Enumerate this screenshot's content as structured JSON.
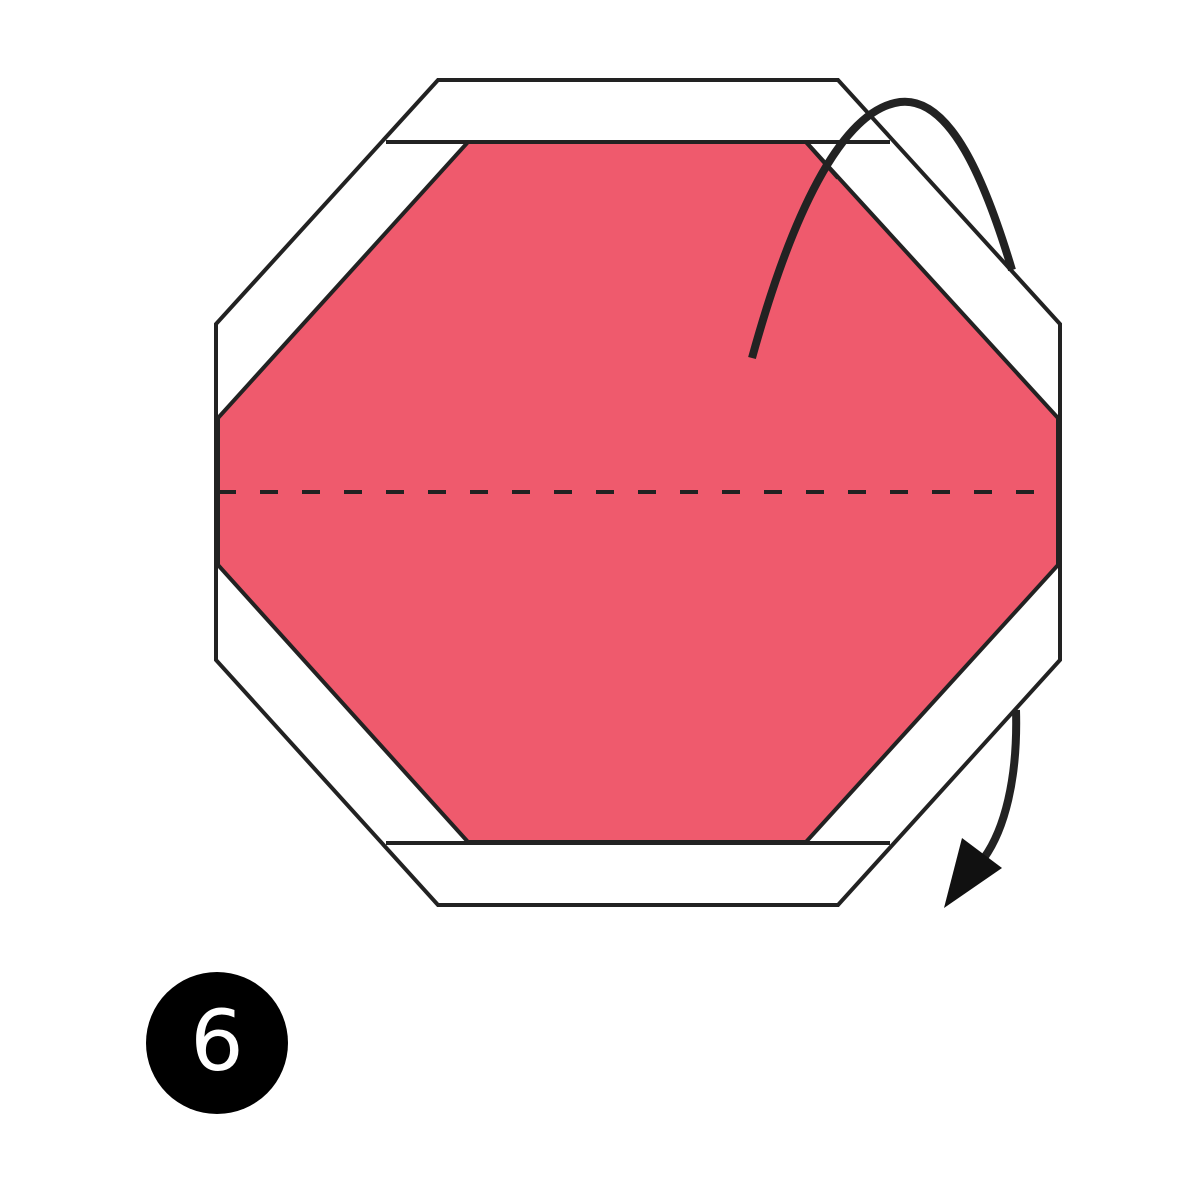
{
  "step": {
    "number": "6"
  },
  "colors": {
    "paper_front": "#EF5A6D",
    "paper_back": "#FFFFFF",
    "outline": "#222222",
    "arrow": "#222222",
    "badge": "#000000"
  },
  "icons": {
    "fold_arrow": "curved-arrow-icon",
    "fold_line": "valley-fold-dashed-line"
  }
}
